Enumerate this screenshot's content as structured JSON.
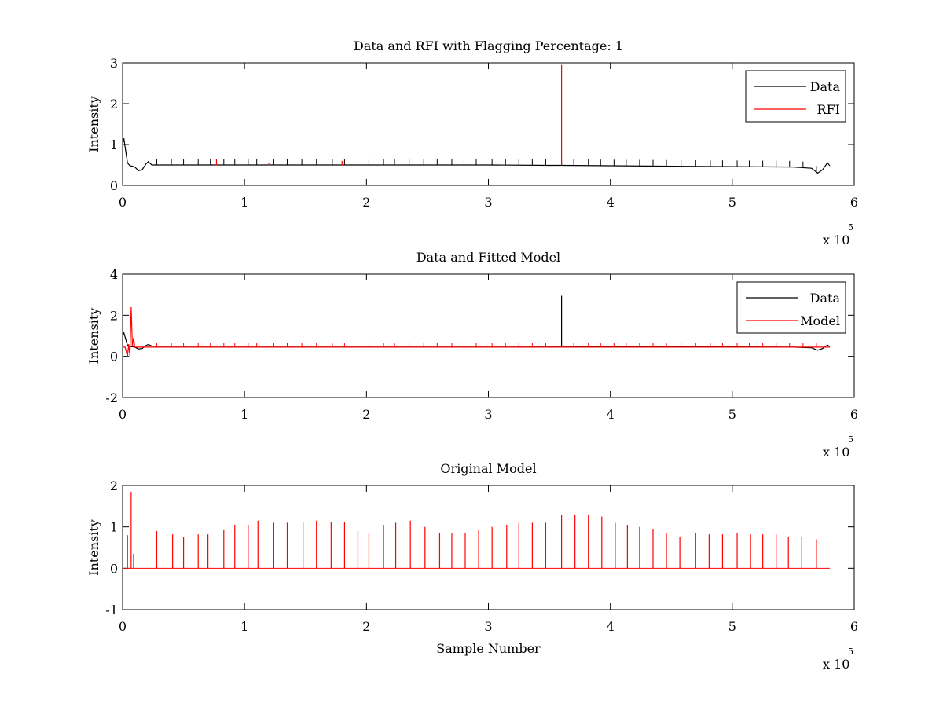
{
  "colors": {
    "data": "#000000",
    "rfi": "#ff0000",
    "model": "#ff0000",
    "axes": "#000000",
    "background": "#ffffff"
  },
  "chart_data": [
    {
      "type": "line",
      "title": "Data and RFI with Flagging Percentage: 1",
      "xlabel": "",
      "ylabel": "Intensity",
      "xlim": [
        0,
        6
      ],
      "ylim": [
        0,
        3
      ],
      "x_exponent": {
        "prefix": "x 10",
        "power": "5"
      },
      "xticks": [
        "0",
        "1",
        "2",
        "3",
        "4",
        "5",
        "6"
      ],
      "yticks": [
        "0",
        "1",
        "2",
        "3"
      ],
      "grid": false,
      "legend": {
        "position": "top-right",
        "entries": [
          "Data",
          "RFI"
        ]
      },
      "series": [
        {
          "name": "Data",
          "color": "#000000",
          "x": [
            0.0,
            0.01,
            0.02,
            0.04,
            0.06,
            0.08,
            0.1,
            0.13,
            0.16,
            0.19,
            0.21,
            0.24,
            0.5,
            1.0,
            1.5,
            2.0,
            2.5,
            3.0,
            3.5,
            3.6,
            4.0,
            4.5,
            5.0,
            5.5,
            5.65,
            5.7,
            5.74,
            5.78,
            5.8
          ],
          "y": [
            1.0,
            1.15,
            0.95,
            0.55,
            0.48,
            0.47,
            0.45,
            0.36,
            0.38,
            0.52,
            0.58,
            0.5,
            0.5,
            0.5,
            0.5,
            0.5,
            0.5,
            0.5,
            0.49,
            0.49,
            0.48,
            0.47,
            0.46,
            0.45,
            0.42,
            0.3,
            0.38,
            0.55,
            0.48
          ],
          "spikes": {
            "x": [
              0.28,
              0.4,
              0.5,
              0.62,
              0.72,
              0.83,
              0.92,
              1.03,
              1.1,
              1.24,
              1.35,
              1.47,
              1.59,
              1.72,
              1.82,
              1.93,
              2.02,
              2.14,
              2.23,
              2.35,
              2.47,
              2.58,
              2.7,
              2.8,
              2.9,
              3.03,
              3.14,
              3.25,
              3.36,
              3.47,
              3.6,
              3.7,
              3.82,
              3.92,
              4.03,
              4.13,
              4.24,
              4.35,
              4.46,
              4.58,
              4.7,
              4.82,
              4.92,
              5.04,
              5.14,
              5.25,
              5.36,
              5.47,
              5.58,
              5.69
            ],
            "height": 0.15
          }
        },
        {
          "name": "RFI",
          "color": "#ff0000",
          "impulses": {
            "x": [
              0.77,
              1.2,
              1.8,
              3.6
            ],
            "y": [
              0.65,
              0.55,
              0.6,
              2.95
            ]
          }
        }
      ]
    },
    {
      "type": "line",
      "title": "Data and Fitted Model",
      "xlabel": "",
      "ylabel": "Intensity",
      "xlim": [
        0,
        6
      ],
      "ylim": [
        -2,
        4
      ],
      "x_exponent": {
        "prefix": "x 10",
        "power": "5"
      },
      "xticks": [
        "0",
        "1",
        "2",
        "3",
        "4",
        "5",
        "6"
      ],
      "yticks": [
        "-2",
        "0",
        "2",
        "4"
      ],
      "grid": false,
      "legend": {
        "position": "top-right",
        "entries": [
          "Data",
          "Model"
        ]
      },
      "series": [
        {
          "name": "Data",
          "color": "#000000",
          "x": [
            0.0,
            0.01,
            0.02,
            0.04,
            0.06,
            0.08,
            0.1,
            0.13,
            0.16,
            0.19,
            0.21,
            0.24,
            0.5,
            1.0,
            1.5,
            2.0,
            2.5,
            3.0,
            3.5,
            3.6,
            4.0,
            4.5,
            5.0,
            5.5,
            5.65,
            5.7,
            5.74,
            5.78,
            5.8
          ],
          "y": [
            1.0,
            1.15,
            0.95,
            0.55,
            0.48,
            0.47,
            0.45,
            0.36,
            0.38,
            0.52,
            0.58,
            0.5,
            0.5,
            0.5,
            0.5,
            0.5,
            0.5,
            0.5,
            0.49,
            0.49,
            0.48,
            0.47,
            0.46,
            0.45,
            0.42,
            0.3,
            0.38,
            0.55,
            0.48
          ],
          "impulses": {
            "x": [
              3.6
            ],
            "y": [
              2.95
            ]
          }
        },
        {
          "name": "Model",
          "color": "#ff0000",
          "x": [
            0.0,
            0.02,
            0.04,
            0.05,
            0.06,
            0.07,
            0.08,
            0.09,
            0.1,
            0.5,
            1.0,
            2.0,
            3.0,
            4.0,
            5.0,
            5.8
          ],
          "y": [
            0.45,
            0.45,
            0.0,
            0.6,
            0.0,
            2.4,
            0.5,
            0.9,
            0.45,
            0.45,
            0.45,
            0.45,
            0.45,
            0.45,
            0.45,
            0.45
          ],
          "spikes": {
            "x": [
              0.28,
              0.4,
              0.5,
              0.62,
              0.72,
              0.83,
              0.92,
              1.03,
              1.1,
              1.24,
              1.35,
              1.47,
              1.59,
              1.72,
              1.82,
              1.93,
              2.02,
              2.14,
              2.23,
              2.35,
              2.47,
              2.58,
              2.7,
              2.8,
              2.9,
              3.03,
              3.14,
              3.25,
              3.36,
              3.47,
              3.7,
              3.82,
              3.92,
              4.03,
              4.13,
              4.24,
              4.35,
              4.46,
              4.58,
              4.7,
              4.82,
              4.92,
              5.04,
              5.14,
              5.25,
              5.36,
              5.47,
              5.58,
              5.69
            ],
            "height": 0.2
          }
        }
      ]
    },
    {
      "type": "line",
      "title": "Original Model",
      "xlabel": "Sample Number",
      "ylabel": "Intensity",
      "xlim": [
        0,
        6
      ],
      "ylim": [
        -1,
        2
      ],
      "x_exponent": {
        "prefix": "x 10",
        "power": "5"
      },
      "xticks": [
        "0",
        "1",
        "2",
        "3",
        "4",
        "5",
        "6"
      ],
      "yticks": [
        "-1",
        "0",
        "1",
        "2"
      ],
      "grid": false,
      "legend": null,
      "series": [
        {
          "color": "#ff0000",
          "baseline": {
            "x": [
              0.0,
              5.8
            ],
            "y": 0.0
          },
          "impulses": {
            "x": [
              0.04,
              0.07,
              0.09,
              0.28,
              0.41,
              0.5,
              0.62,
              0.7,
              0.83,
              0.92,
              1.03,
              1.11,
              1.24,
              1.35,
              1.48,
              1.59,
              1.71,
              1.82,
              1.93,
              2.02,
              2.14,
              2.24,
              2.36,
              2.48,
              2.6,
              2.7,
              2.81,
              2.92,
              3.03,
              3.15,
              3.25,
              3.36,
              3.47,
              3.6,
              3.71,
              3.82,
              3.93,
              4.04,
              4.14,
              4.24,
              4.35,
              4.46,
              4.57,
              4.7,
              4.81,
              4.92,
              5.04,
              5.15,
              5.25,
              5.36,
              5.46,
              5.57,
              5.69
            ],
            "y": [
              0.8,
              1.85,
              0.35,
              0.9,
              0.82,
              0.75,
              0.82,
              0.82,
              0.92,
              1.05,
              1.05,
              1.15,
              1.1,
              1.1,
              1.12,
              1.15,
              1.12,
              1.12,
              0.9,
              0.85,
              1.05,
              1.1,
              1.15,
              1.0,
              0.85,
              0.85,
              0.85,
              0.92,
              1.0,
              1.05,
              1.1,
              1.1,
              1.1,
              1.28,
              1.3,
              1.3,
              1.25,
              1.1,
              1.05,
              1.0,
              0.95,
              0.85,
              0.75,
              0.85,
              0.82,
              0.82,
              0.85,
              0.82,
              0.82,
              0.82,
              0.75,
              0.75,
              0.7
            ]
          }
        }
      ]
    }
  ]
}
